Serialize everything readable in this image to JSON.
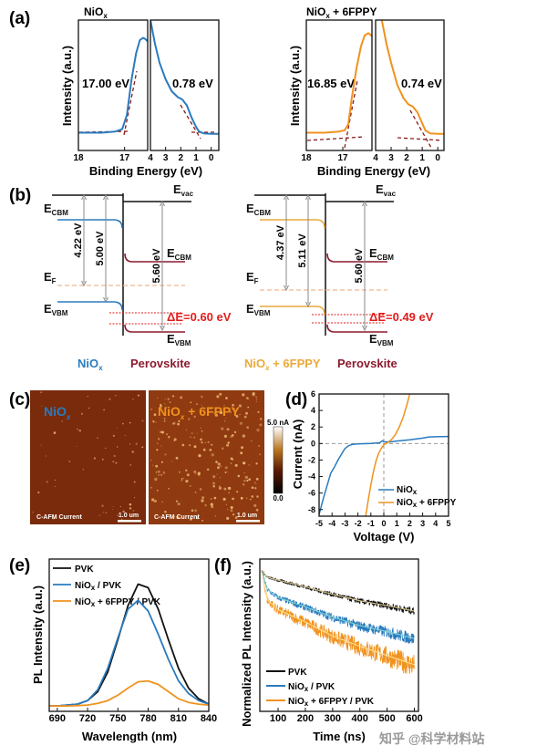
{
  "panel_labels": {
    "a": "(a)",
    "b": "(b)",
    "c": "(c)",
    "d": "(d)",
    "e": "(e)",
    "f": "(f)"
  },
  "colors": {
    "niox": "#2a7bbf",
    "niox_6fppy": "#f0921e",
    "niox_6fppy_diagram": "#e9aa3a",
    "pvk": "#111111",
    "perovskite": "#8b1a2e",
    "delta": "#e11d1d",
    "tangent": "#8b1a1a"
  },
  "diagram_b": [
    {
      "evac": {
        "main": "E",
        "sub": "vac"
      },
      "ecbm_left": {
        "main": "E",
        "sub": "CBM"
      },
      "ef": {
        "main": "E",
        "sub": "F"
      },
      "evbm_left": {
        "main": "E",
        "sub": "VBM"
      },
      "ecbm_right": {
        "main": "E",
        "sub": "CBM"
      },
      "evbm_right": {
        "main": "E",
        "sub": "VBM"
      },
      "gap1": "4.22 eV",
      "gap2": "5.00 eV",
      "gap3": "5.60 eV",
      "delta": "ΔE=0.60 eV",
      "left_material": {
        "main": "NiO",
        "sub": "x"
      },
      "right_material": "Perovskite"
    },
    {
      "evac": {
        "main": "E",
        "sub": "vac"
      },
      "ecbm_left": {
        "main": "E",
        "sub": "CBM"
      },
      "ef": {
        "main": "E",
        "sub": "F"
      },
      "evbm_left": {
        "main": "E",
        "sub": "VBM"
      },
      "ecbm_right": {
        "main": "E",
        "sub": "CBM"
      },
      "evbm_right": {
        "main": "E",
        "sub": "VBM"
      },
      "gap1": "4.37 eV",
      "gap2": "5.11 eV",
      "gap3": "5.60 eV",
      "delta": "ΔE=0.49 eV",
      "left_material": {
        "main": "NiO",
        "sub": "x",
        "rest": " + 6FPPY"
      },
      "right_material": "Perovskite"
    }
  ],
  "afm_c": {
    "images": [
      {
        "label": {
          "main": "NiO",
          "sub": "x"
        },
        "caption": "C-AFM Current",
        "scale_bar": "1.0 um"
      },
      {
        "label": {
          "main": "NiO",
          "sub": "x",
          "rest": " + 6FPPY"
        },
        "caption": "C-AFM Current",
        "scale_bar": "1.0 um"
      }
    ],
    "colorbar": {
      "max": "5.0 nA",
      "min": "0.0"
    }
  },
  "chart_data": [
    {
      "type": "line",
      "panel": "a-left",
      "title": {
        "main": "NiO",
        "sub": "x"
      },
      "xlabel": "Binding Energy (eV)",
      "ylabel": "Intensity (a.u.)",
      "ylim": [
        -0.1,
        1.0
      ],
      "subplots": [
        {
          "xlim": [
            18,
            16.5
          ],
          "xticks": [
            18,
            17
          ],
          "annotation": "17.00 eV",
          "x": [
            18,
            17.5,
            17.2,
            17.05,
            16.95,
            16.85,
            16.75,
            16.67,
            16.6,
            16.55,
            16.5
          ],
          "y": [
            0.05,
            0.05,
            0.06,
            0.08,
            0.2,
            0.5,
            0.72,
            0.83,
            0.85,
            0.84,
            0.82
          ]
        },
        {
          "xlim": [
            4,
            -0.5
          ],
          "xticks": [
            4,
            3,
            2,
            1,
            0
          ],
          "annotation": "0.78 eV",
          "x": [
            4,
            3.7,
            3.4,
            3,
            2.6,
            2.2,
            1.9,
            1.6,
            1.3,
            1,
            0.8,
            0.5,
            0,
            -0.5
          ],
          "y": [
            1.0,
            0.8,
            0.64,
            0.5,
            0.4,
            0.35,
            0.33,
            0.28,
            0.18,
            0.1,
            0.06,
            0.045,
            0.04,
            0.04
          ]
        }
      ]
    },
    {
      "type": "line",
      "panel": "a-right",
      "title": {
        "main": "NiO",
        "sub": "x",
        "rest": " + 6FPPY"
      },
      "xlabel": "Binding Energy (eV)",
      "ylabel": "Intensity (a.u.)",
      "ylim": [
        -0.1,
        1.0
      ],
      "subplots": [
        {
          "xlim": [
            18,
            16.2
          ],
          "xticks": [
            18,
            17
          ],
          "annotation": "16.85 eV",
          "x": [
            18,
            17.5,
            17.1,
            16.95,
            16.85,
            16.75,
            16.62,
            16.5,
            16.4,
            16.3,
            16.25,
            16.2
          ],
          "y": [
            0.05,
            0.05,
            0.06,
            0.07,
            0.12,
            0.35,
            0.6,
            0.78,
            0.87,
            0.89,
            0.88,
            0.86
          ]
        },
        {
          "xlim": [
            4,
            -0.4
          ],
          "xticks": [
            4,
            3,
            2,
            1,
            0
          ],
          "annotation": "0.74 eV",
          "x": [
            3.6,
            3.3,
            3,
            2.6,
            2.2,
            1.9,
            1.6,
            1.3,
            1,
            0.8,
            0.5,
            0,
            -0.4
          ],
          "y": [
            1.0,
            0.8,
            0.64,
            0.45,
            0.34,
            0.29,
            0.27,
            0.22,
            0.13,
            0.07,
            0.045,
            0.04,
            0.04
          ]
        }
      ]
    },
    {
      "type": "line",
      "panel": "d",
      "xlabel": "Voltage (V)",
      "ylabel": "Current (nA)",
      "xlim": [
        -5,
        5
      ],
      "ylim": [
        -8.8,
        6
      ],
      "xticks": [
        -5,
        -4,
        -3,
        -2,
        -1,
        0,
        1,
        2,
        3,
        4,
        5
      ],
      "yticks": [
        -8,
        -6,
        -4,
        -2,
        0,
        2,
        4,
        6
      ],
      "legend": "bottom-right",
      "series": [
        {
          "name": {
            "main": "NiO",
            "sub": "x"
          },
          "x": [
            -5,
            -4.7,
            -4.4,
            -4.1,
            -3.8,
            -3.5,
            -3.2,
            -3,
            -2.7,
            -2.4,
            -2,
            -1,
            -0.3,
            -0.1,
            0,
            0.5,
            1,
            2,
            3,
            3.5,
            4,
            5
          ],
          "y": [
            -8.6,
            -6.8,
            -5.2,
            -3.6,
            -2.8,
            -1.9,
            -1.1,
            -0.6,
            -0.25,
            -0.1,
            -0.05,
            0,
            0.1,
            0.35,
            0.2,
            0.2,
            0.3,
            0.45,
            0.65,
            0.8,
            0.82,
            0.85
          ]
        },
        {
          "name": {
            "main": "NiO",
            "sub": "x",
            "rest": " + 6FPPY"
          },
          "x": [
            -1.4,
            -1.2,
            -1,
            -0.8,
            -0.6,
            -0.4,
            -0.2,
            0,
            0.3,
            0.6,
            0.9,
            1.2,
            1.5,
            1.8,
            2
          ],
          "y": [
            -8.8,
            -6.8,
            -5,
            -3.4,
            -2.1,
            -1.2,
            -0.6,
            -0.15,
            0.1,
            0.5,
            1.1,
            2.0,
            3.2,
            4.8,
            6
          ]
        }
      ]
    },
    {
      "type": "line",
      "panel": "e",
      "xlabel": "Wavelength (nm)",
      "ylabel": "PL Intensity (a.u.)",
      "xlim": [
        682,
        840
      ],
      "ylim": [
        0,
        0.85
      ],
      "xticks": [
        690,
        720,
        750,
        780,
        810,
        840
      ],
      "legend": "top-left",
      "x": [
        680,
        690,
        700,
        710,
        720,
        730,
        740,
        750,
        760,
        770,
        780,
        790,
        800,
        810,
        820,
        830,
        840
      ],
      "series": [
        {
          "name": "PVK",
          "y": [
            0.03,
            0.03,
            0.035,
            0.04,
            0.06,
            0.11,
            0.22,
            0.4,
            0.59,
            0.71,
            0.69,
            0.57,
            0.4,
            0.24,
            0.13,
            0.07,
            0.04
          ]
        },
        {
          "name": {
            "main": "NiO",
            "sub": "x",
            "rest": " / PVK"
          },
          "y": [
            0.03,
            0.03,
            0.035,
            0.04,
            0.06,
            0.12,
            0.24,
            0.41,
            0.57,
            0.62,
            0.56,
            0.43,
            0.29,
            0.17,
            0.1,
            0.06,
            0.04
          ]
        },
        {
          "name": {
            "main": "NiO",
            "sub": "x",
            "rest": " + 6FPPY / PVK"
          },
          "y": [
            0.03,
            0.03,
            0.03,
            0.032,
            0.035,
            0.045,
            0.06,
            0.09,
            0.13,
            0.165,
            0.17,
            0.15,
            0.11,
            0.07,
            0.05,
            0.04,
            0.035
          ]
        }
      ]
    },
    {
      "type": "line",
      "panel": "f",
      "xlabel": "Time (ns)",
      "ylabel": "Normalized PL Intensity (a.u.)",
      "xlim": [
        33,
        615
      ],
      "ylim": [
        0.05,
        1
      ],
      "yscale": "log",
      "xticks": [
        100,
        200,
        300,
        400,
        500,
        600
      ],
      "legend": "bottom-left",
      "x": [
        40,
        60,
        100,
        200,
        300,
        400,
        500,
        600
      ],
      "series": [
        {
          "name": "PVK",
          "y": [
            0.8,
            0.7,
            0.66,
            0.58,
            0.5,
            0.44,
            0.4,
            0.36
          ]
        },
        {
          "name": {
            "main": "NiO",
            "sub": "x",
            "rest": " / PVK"
          },
          "y": [
            0.8,
            0.55,
            0.47,
            0.39,
            0.32,
            0.27,
            0.24,
            0.21
          ]
        },
        {
          "name": {
            "main": "NiO",
            "sub": "x",
            "rest": " + 6FPPY / PVK"
          },
          "y": [
            0.8,
            0.45,
            0.37,
            0.29,
            0.22,
            0.18,
            0.15,
            0.125
          ]
        }
      ]
    }
  ],
  "watermark": "知乎 @科学材料站"
}
